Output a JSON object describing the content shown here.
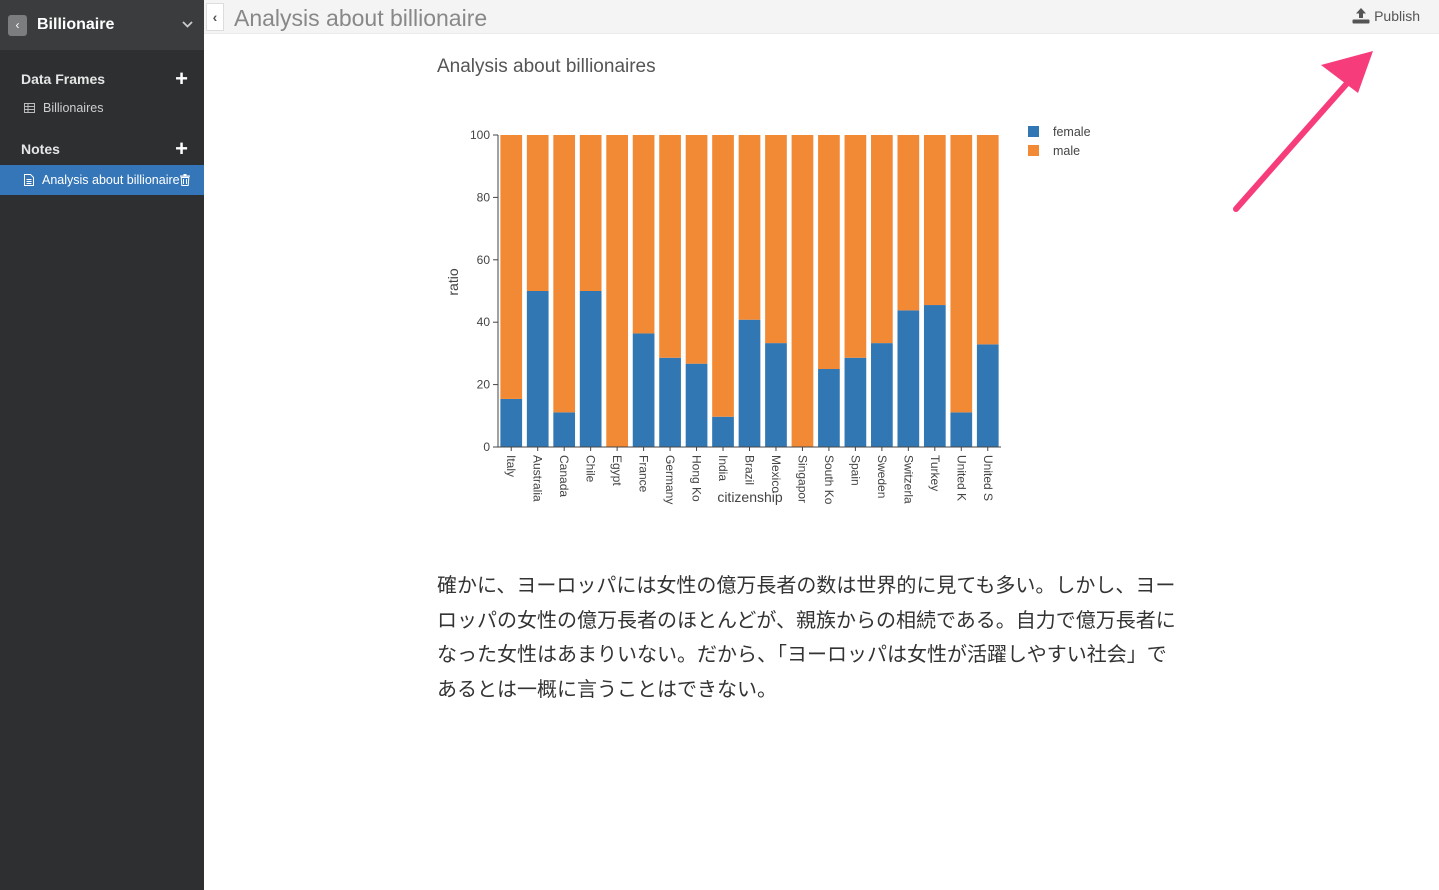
{
  "sidebar": {
    "project_title": "Billionaire",
    "data_frames_label": "Data Frames",
    "data_frames": [
      {
        "label": "Billionaires"
      }
    ],
    "notes_label": "Notes",
    "notes": [
      {
        "label": "Analysis about billionaire",
        "selected": true
      }
    ]
  },
  "header": {
    "title": "Analysis about billionaire",
    "publish_label": "Publish"
  },
  "note": {
    "chart_title": "Analysis about billionaires",
    "paragraph": "確かに、ヨーロッパには女性の億万長者の数は世界的に見ても多い。しかし、ヨーロッパの女性の億万長者のほとんどが、親族からの相続である。自力で億万長者になった女性はあまりいない。だから、「ヨーロッパは女性が活躍しやすい社会」であるとは一概に言うことはできない。"
  },
  "annotation": {
    "arrow_color": "#f73c7c"
  },
  "chart_data": {
    "type": "bar",
    "stacked": true,
    "title": "",
    "xlabel": "citizenship",
    "ylabel": "ratio",
    "ylim": [
      0,
      100
    ],
    "yticks": [
      0,
      20,
      40,
      60,
      80,
      100
    ],
    "legend_position": "top-right",
    "grid": false,
    "categories": [
      "Italy",
      "Australia",
      "Canada",
      "Chile",
      "Egypt",
      "France",
      "Germany",
      "Hong Ko",
      "India",
      "Brazil",
      "Mexico",
      "Singapor",
      "South Ko",
      "Spain",
      "Sweden",
      "Switzerla",
      "Turkey",
      "United K",
      "United S"
    ],
    "series": [
      {
        "name": "female",
        "color": "#3177b4",
        "values": [
          15.4,
          50,
          11.1,
          50,
          0,
          36.4,
          28.6,
          26.7,
          9.7,
          40.8,
          33.3,
          0,
          25,
          28.6,
          33.3,
          43.8,
          45.5,
          11.1,
          32.9
        ]
      },
      {
        "name": "male",
        "color": "#f28a35",
        "values": [
          84.6,
          50,
          88.9,
          50,
          100,
          63.6,
          71.4,
          73.3,
          90.3,
          59.2,
          66.7,
          100,
          75,
          71.4,
          66.7,
          56.2,
          54.5,
          88.9,
          67.1
        ]
      }
    ]
  }
}
